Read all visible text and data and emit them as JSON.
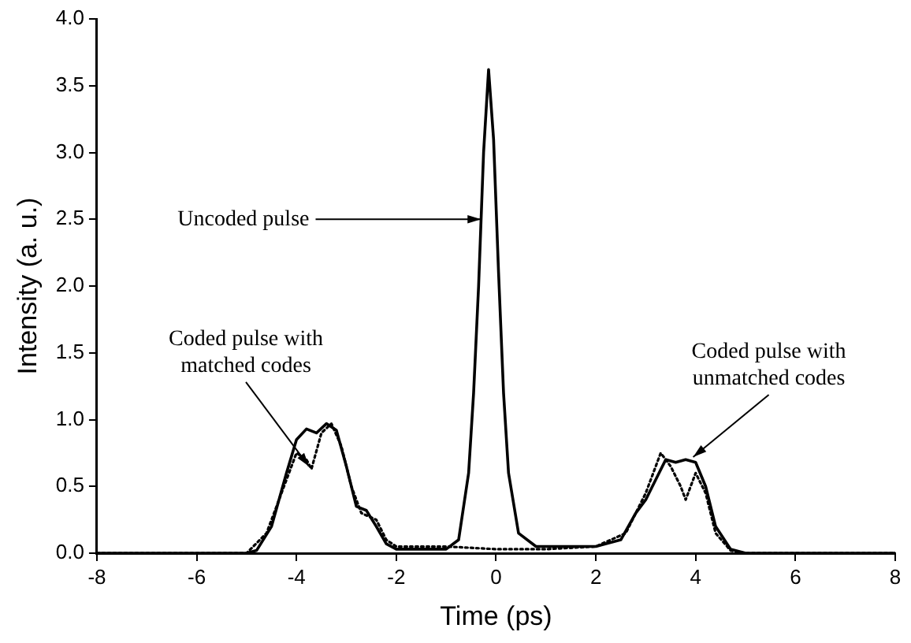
{
  "chart_data": {
    "type": "line",
    "xlabel": "Time (ps)",
    "ylabel": "Intensity (a. u.)",
    "xlim": [
      -8,
      8
    ],
    "xticks": [
      -8,
      -6,
      -4,
      -2,
      0,
      2,
      4,
      6,
      8
    ],
    "ylim": [
      0,
      4
    ],
    "yticks": [
      {
        "value": 0,
        "label": "0.0"
      },
      0.5,
      {
        "value": 1,
        "label": "1.0"
      },
      1.5,
      {
        "value": 2,
        "label": "2.0"
      },
      2.5,
      {
        "value": 3,
        "label": "3.0"
      },
      3.5,
      {
        "value": 4,
        "label": "4.0"
      }
    ],
    "grid": false,
    "legend": false,
    "marker": "none",
    "series": [
      {
        "color": "#000000",
        "line_style": "solid",
        "x": [
          -8,
          -6,
          -5,
          -4.8,
          -4.5,
          -4.2,
          -4.0,
          -3.8,
          -3.6,
          -3.4,
          -3.2,
          -3.0,
          -2.8,
          -2.6,
          -2.4,
          -2.2,
          -2,
          -1,
          -0.75,
          -0.55,
          -0.45,
          -0.35,
          -0.25,
          -0.15,
          -0.05,
          0.05,
          0.15,
          0.25,
          0.45,
          0.8,
          1,
          2,
          2.5,
          2.8,
          3.0,
          3.2,
          3.4,
          3.6,
          3.8,
          4.0,
          4.2,
          4.4,
          4.7,
          5,
          6,
          8
        ],
        "values": [
          0,
          0,
          0,
          0.02,
          0.2,
          0.6,
          0.85,
          0.93,
          0.9,
          0.97,
          0.92,
          0.65,
          0.35,
          0.32,
          0.2,
          0.07,
          0.03,
          0.03,
          0.1,
          0.6,
          1.2,
          2.0,
          3.0,
          3.62,
          3.1,
          2.1,
          1.2,
          0.6,
          0.15,
          0.05,
          0.05,
          0.05,
          0.1,
          0.3,
          0.4,
          0.55,
          0.7,
          0.68,
          0.7,
          0.68,
          0.5,
          0.2,
          0.03,
          0,
          0,
          0
        ]
      },
      {
        "color": "#000000",
        "line_style": "dotted",
        "x": [
          -8,
          -6,
          -5,
          -4.6,
          -4.2,
          -4.0,
          -3.8,
          -3.7,
          -3.5,
          -3.3,
          -3.1,
          -2.9,
          -2.7,
          -2.4,
          -2.2,
          -2,
          -1,
          0,
          1,
          2,
          2.6,
          3.0,
          3.3,
          3.5,
          3.7,
          3.8,
          4.0,
          4.2,
          4.4,
          4.7,
          5,
          6,
          8
        ],
        "values": [
          0,
          0,
          0,
          0.15,
          0.55,
          0.75,
          0.7,
          0.63,
          0.9,
          0.97,
          0.8,
          0.5,
          0.3,
          0.25,
          0.1,
          0.05,
          0.05,
          0.03,
          0.03,
          0.05,
          0.15,
          0.45,
          0.75,
          0.65,
          0.5,
          0.4,
          0.6,
          0.45,
          0.15,
          0.02,
          0,
          0,
          0
        ]
      }
    ],
    "annotations": [
      {
        "text": "Uncoded pulse",
        "x": -0.3,
        "y": 2.5
      },
      {
        "text": "Coded pulse with matched codes",
        "x": -3.75,
        "y": 0.65
      },
      {
        "text": "Coded pulse with unmatched codes",
        "x": 3.95,
        "y": 0.72
      }
    ]
  }
}
